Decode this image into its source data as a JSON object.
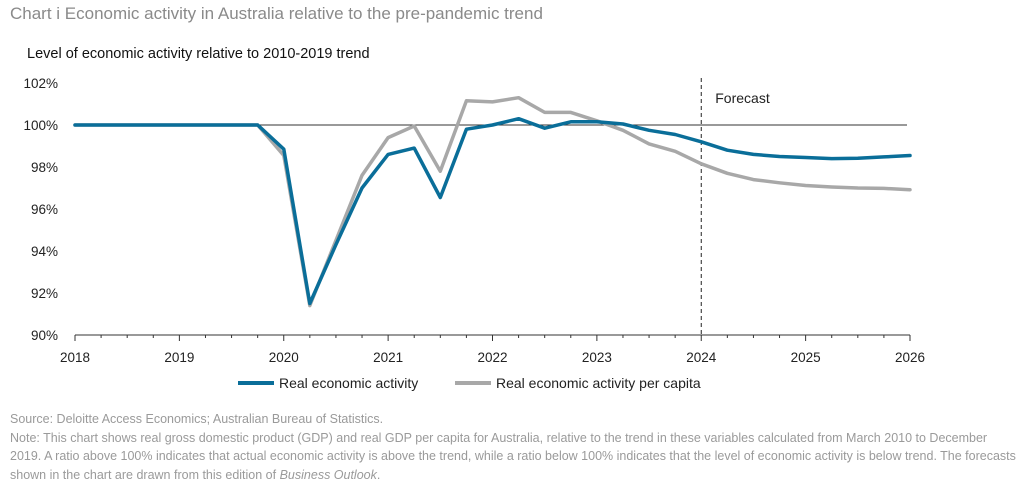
{
  "title": "Chart i Economic activity in Australia relative to the pre-pandemic trend",
  "source": "Source: Deloitte Access Economics; Australian Bureau of Statistics.",
  "note_prefix": "Note: This chart shows real gross domestic product (GDP) and real GDP per capita for Australia, relative to the trend in these variables calculated from March 2010 to December 2019. A ratio above 100% indicates that actual economic activity is above the trend, while a ratio below 100% indicates that the level of economic activity is below trend. The forecasts shown in the chart are drawn from this edition of ",
  "note_italic": "Business Outlook",
  "note_suffix": ".",
  "chart_data": {
    "type": "line",
    "ylabel": "Level of economic activity relative to 2010-2019 trend",
    "xlim": [
      2018,
      2026
    ],
    "ylim": [
      90,
      102
    ],
    "x_ticks": [
      "2018",
      "2019",
      "2020",
      "2021",
      "2022",
      "2023",
      "2024",
      "2025",
      "2026"
    ],
    "y_ticks": [
      "90%",
      "92%",
      "94%",
      "96%",
      "98%",
      "100%",
      "102%"
    ],
    "reference_line": 100,
    "forecast_start": 2024,
    "forecast_label": "Forecast",
    "legend_position": "bottom",
    "grid": false,
    "x": [
      2018.0,
      2018.25,
      2018.5,
      2018.75,
      2019.0,
      2019.25,
      2019.5,
      2019.75,
      2020.0,
      2020.25,
      2020.5,
      2020.75,
      2021.0,
      2021.25,
      2021.5,
      2021.75,
      2022.0,
      2022.25,
      2022.5,
      2022.75,
      2023.0,
      2023.25,
      2023.5,
      2023.75,
      2024.0,
      2024.25,
      2024.5,
      2024.75,
      2025.0,
      2025.25,
      2025.5,
      2025.75,
      2026.0
    ],
    "series": [
      {
        "name": "Real economic activity",
        "color": "#0a6e99",
        "values": [
          100.0,
          100.0,
          100.0,
          100.0,
          100.0,
          100.0,
          100.0,
          100.0,
          98.85,
          91.5,
          94.3,
          97.0,
          98.6,
          98.9,
          96.55,
          99.8,
          100.0,
          100.3,
          99.85,
          100.15,
          100.15,
          100.05,
          99.75,
          99.55,
          99.2,
          98.8,
          98.6,
          98.5,
          98.45,
          98.4,
          98.42,
          98.48,
          98.55
        ]
      },
      {
        "name": "Real economic activity per capita",
        "color": "#a8a8a8",
        "values": [
          100.0,
          100.0,
          100.0,
          100.0,
          100.0,
          100.0,
          100.0,
          100.0,
          98.55,
          91.4,
          94.5,
          97.6,
          99.4,
          99.95,
          97.8,
          101.15,
          101.1,
          101.3,
          100.6,
          100.6,
          100.2,
          99.75,
          99.1,
          98.75,
          98.15,
          97.7,
          97.4,
          97.25,
          97.12,
          97.05,
          97.0,
          96.98,
          96.92
        ]
      }
    ]
  }
}
